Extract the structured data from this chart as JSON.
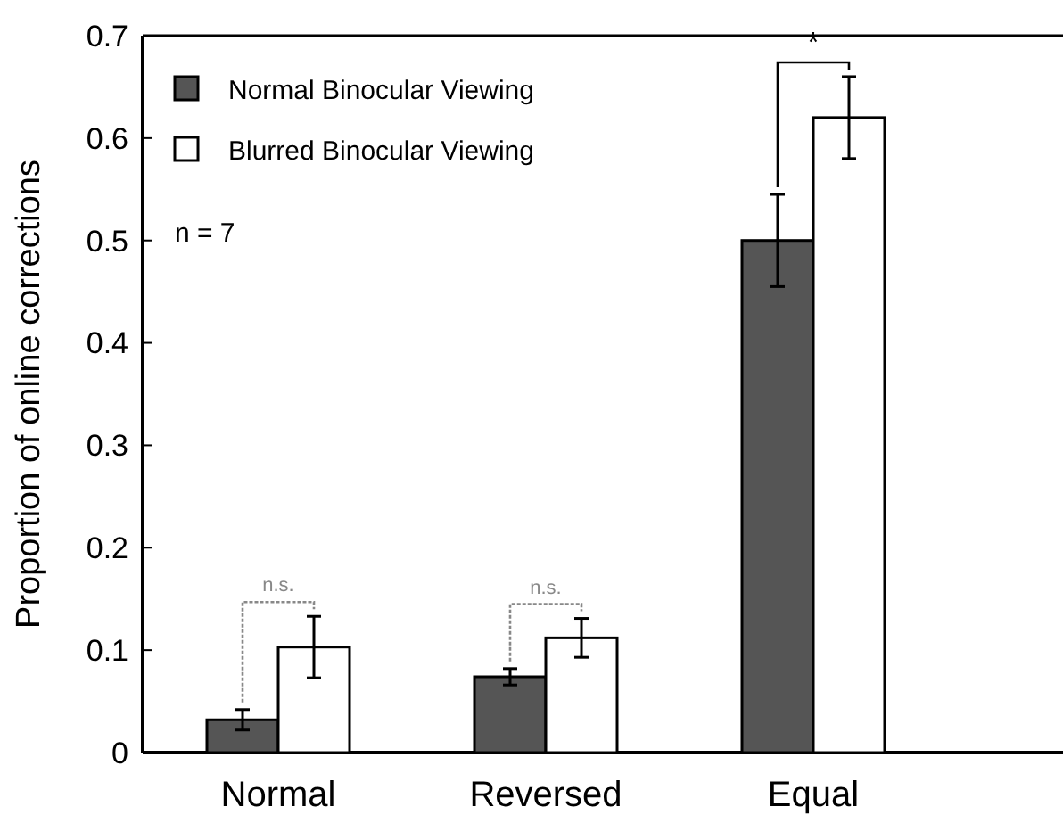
{
  "chart_data": {
    "type": "bar",
    "ylabel": "Proportion of online corrections",
    "categories": [
      "Normal",
      "Reversed",
      "Equal"
    ],
    "series": [
      {
        "name": "Normal Binocular Viewing",
        "color": "#555555",
        "values": [
          0.032,
          0.074,
          0.5
        ],
        "errors": [
          0.01,
          0.008,
          0.045
        ]
      },
      {
        "name": "Blurred Binocular Viewing",
        "color": "#ffffff",
        "values": [
          0.103,
          0.112,
          0.62
        ],
        "errors": [
          0.03,
          0.019,
          0.04
        ]
      }
    ],
    "ylim": [
      0,
      0.7
    ],
    "yticks": [
      {
        "value": 0,
        "label": "0"
      },
      0.1,
      0.2,
      0.3,
      0.4,
      0.5,
      0.6,
      0.7
    ],
    "legend": "top left",
    "annotations": [
      "n = 7",
      {
        "text": "n.s.",
        "x": "Normal",
        "y": 0.103
      },
      {
        "text": "n.s.",
        "x": "Reversed",
        "y": 0.112
      },
      {
        "text": "*",
        "x": "Equal",
        "y": 0.62
      }
    ]
  }
}
